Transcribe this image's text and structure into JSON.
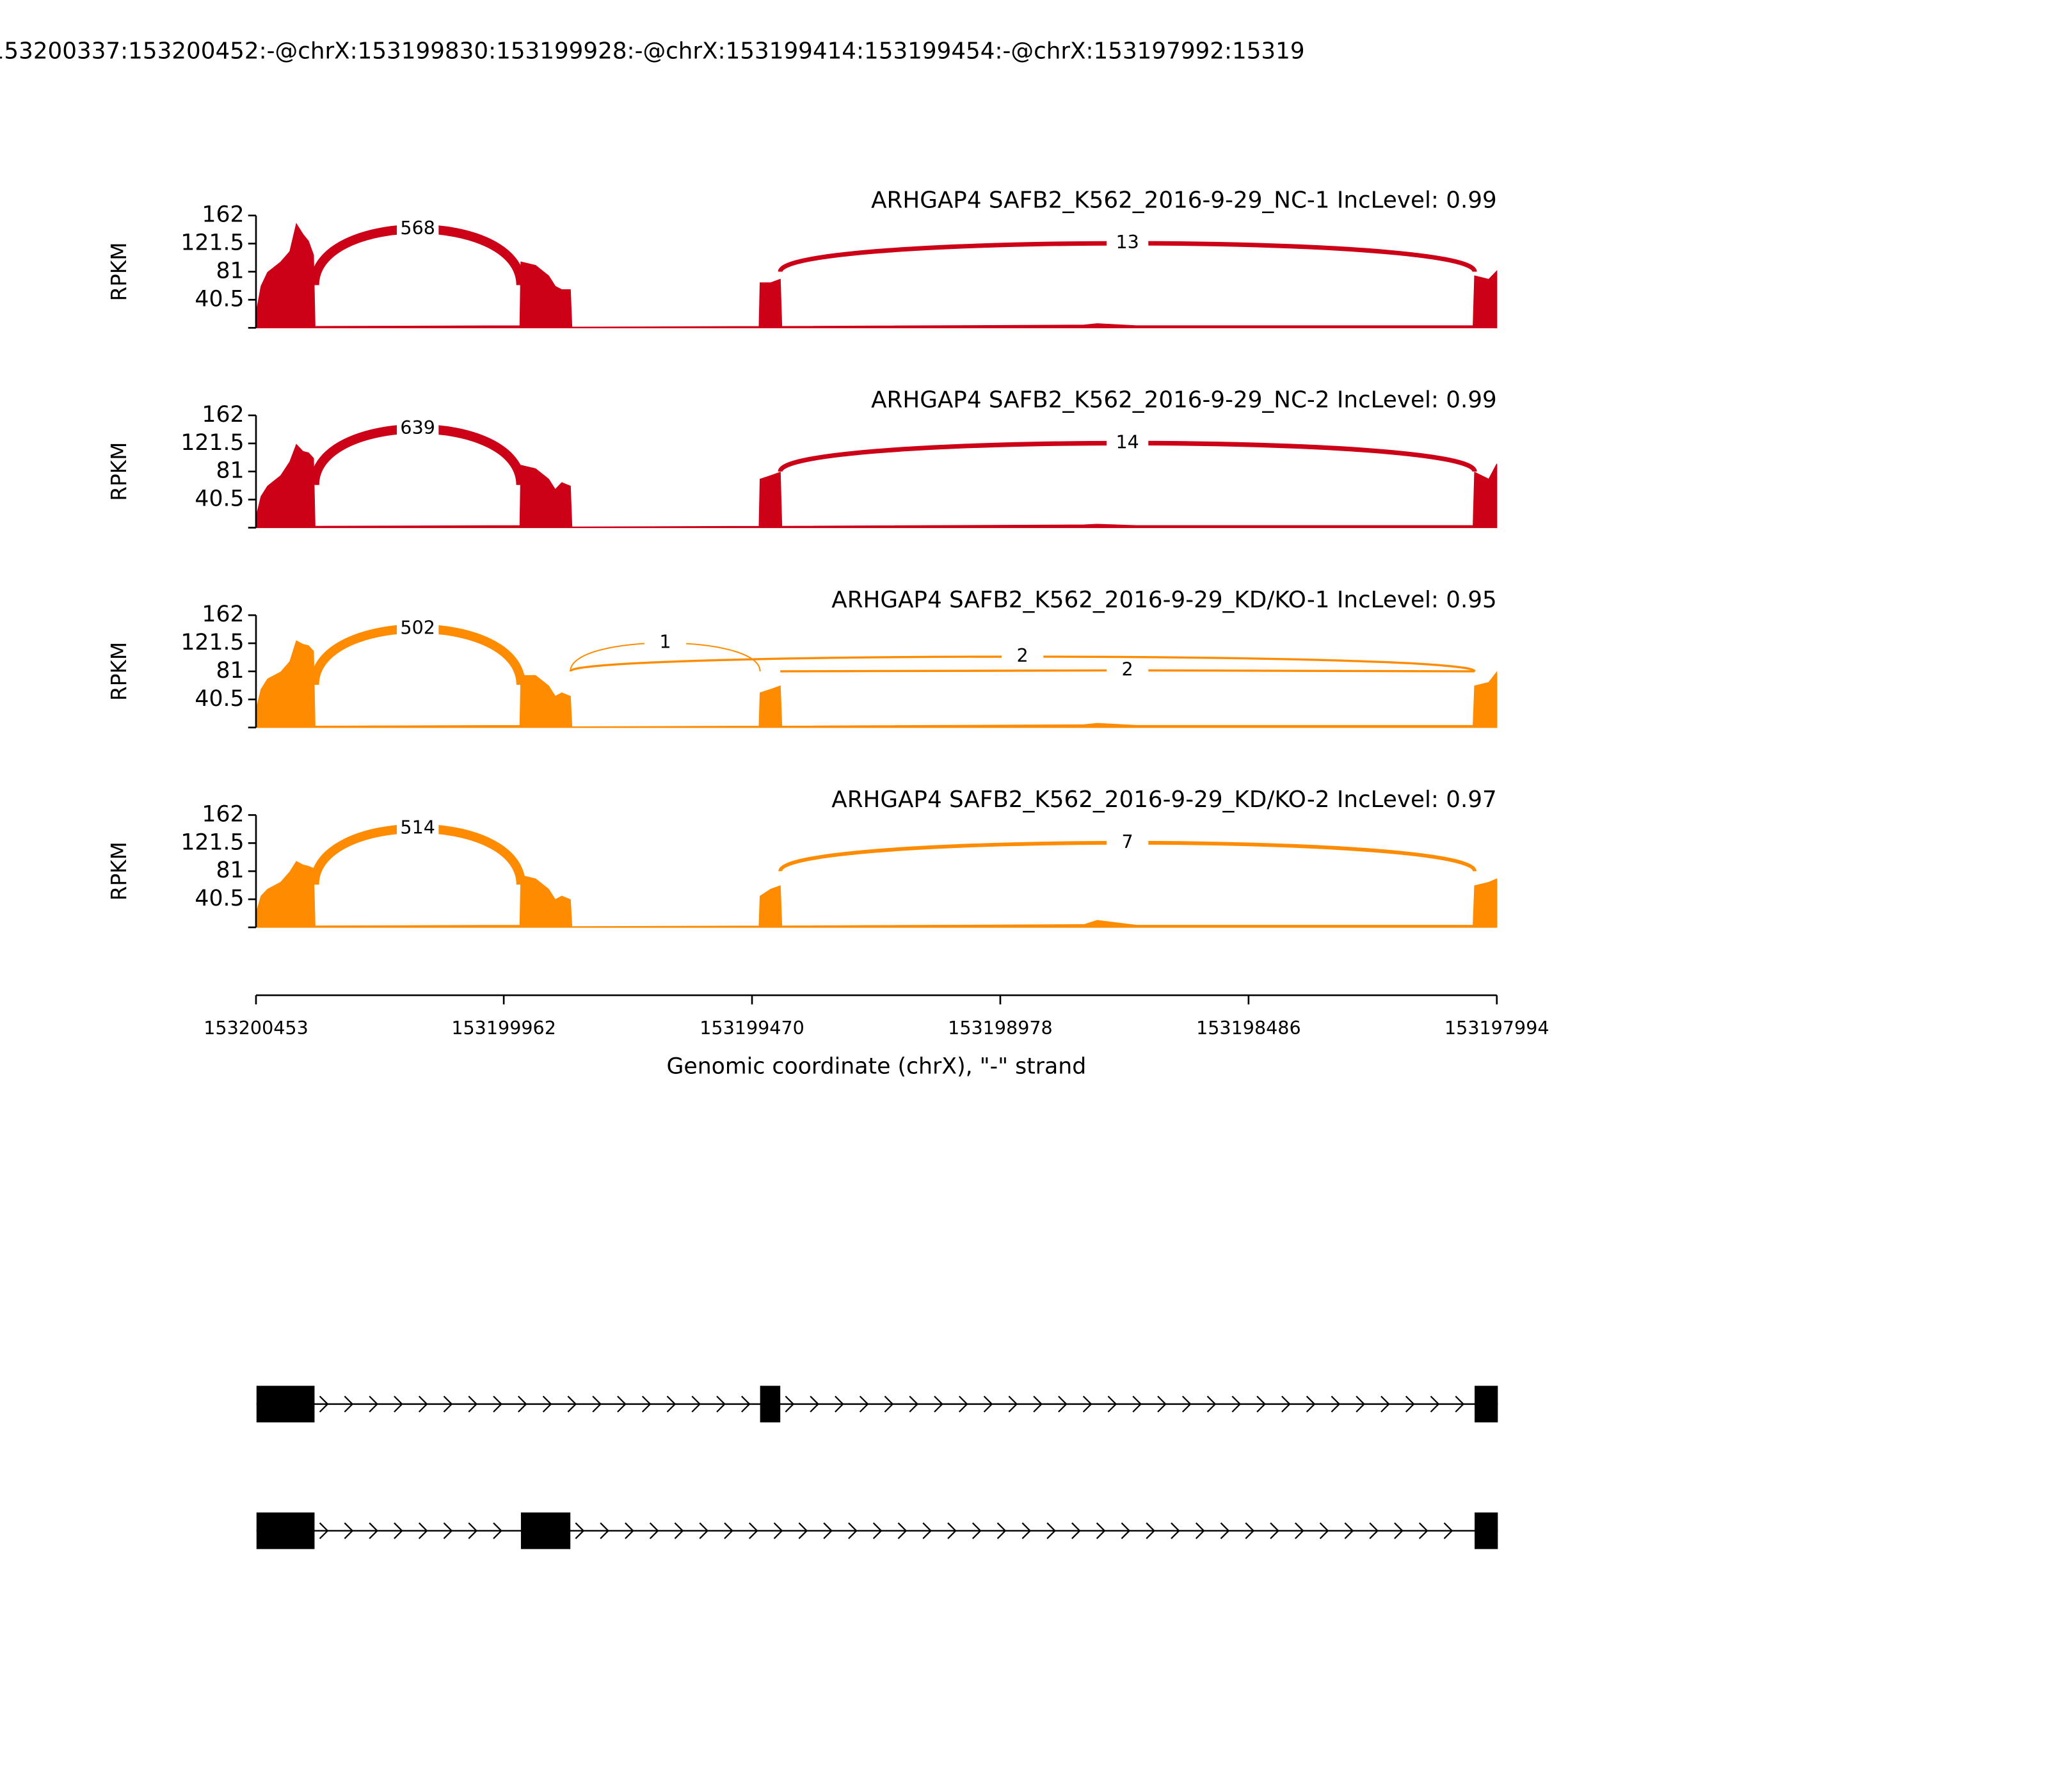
{
  "title": "153200337:153200452:-@chrX:153199830:153199928:-@chrX:153199414:153199454:-@chrX:153197992:15319",
  "chart_data": [
    {
      "type": "area",
      "title": "ARHGAP4 SAFB2_K562_2016-9-29_NC-1 IncLevel: 0.99",
      "color": "#cc0016",
      "ylabel": "RPKM",
      "ylim": [
        0,
        162
      ],
      "yticks": [
        40.5,
        81,
        121.5,
        162
      ],
      "xlim": [
        153200453,
        153197994
      ],
      "x": [
        153200453,
        153200443,
        153200430,
        153200404,
        153200386,
        153200373,
        153200360,
        153200349,
        153200339,
        153200336,
        153199930,
        153199928,
        153199899,
        153199873,
        153199860,
        153199847,
        153199830,
        153199827,
        153199456,
        153199454,
        153199433,
        153199414,
        153199411,
        153198812,
        153198786,
        153198708,
        153198041,
        153198038,
        153198010,
        153197994
      ],
      "values": [
        20,
        60,
        80,
        95,
        110,
        150,
        135,
        125,
        105,
        2,
        3,
        95,
        90,
        75,
        60,
        55,
        55,
        1,
        2,
        65,
        65,
        70,
        2,
        4,
        6,
        3,
        3,
        75,
        70,
        82
      ],
      "junctions": [
        {
          "start": 153200337,
          "end": 153199928,
          "count": 568
        },
        {
          "start": 153199414,
          "end": 153198038,
          "count": 13
        }
      ]
    },
    {
      "type": "area",
      "title": "ARHGAP4 SAFB2_K562_2016-9-29_NC-2 IncLevel: 0.99",
      "color": "#cc0016",
      "ylabel": "RPKM",
      "ylim": [
        0,
        162
      ],
      "yticks": [
        40.5,
        81,
        121.5,
        162
      ],
      "xlim": [
        153200453,
        153197994
      ],
      "x": [
        153200453,
        153200443,
        153200430,
        153200404,
        153200386,
        153200373,
        153200360,
        153200349,
        153200339,
        153200336,
        153199930,
        153199928,
        153199899,
        153199873,
        153199860,
        153199847,
        153199830,
        153199827,
        153199456,
        153199454,
        153199433,
        153199414,
        153199411,
        153198812,
        153198786,
        153198708,
        153198041,
        153198038,
        153198010,
        153197994
      ],
      "values": [
        15,
        45,
        60,
        75,
        95,
        120,
        110,
        108,
        100,
        2,
        3,
        90,
        85,
        70,
        55,
        65,
        60,
        1,
        2,
        70,
        75,
        80,
        2,
        4,
        5,
        3,
        3,
        80,
        70,
        92
      ],
      "junctions": [
        {
          "start": 153200337,
          "end": 153199928,
          "count": 639
        },
        {
          "start": 153199414,
          "end": 153198038,
          "count": 14
        }
      ]
    },
    {
      "type": "area",
      "title": "ARHGAP4 SAFB2_K562_2016-9-29_KD/KO-1 IncLevel: 0.95",
      "color": "#ff8c00",
      "ylabel": "RPKM",
      "ylim": [
        0,
        162
      ],
      "yticks": [
        40.5,
        81,
        121.5,
        162
      ],
      "xlim": [
        153200453,
        153197994
      ],
      "x": [
        153200453,
        153200443,
        153200430,
        153200404,
        153200386,
        153200373,
        153200360,
        153200349,
        153200339,
        153200336,
        153199930,
        153199928,
        153199899,
        153199873,
        153199860,
        153199847,
        153199830,
        153199827,
        153199456,
        153199454,
        153199433,
        153199414,
        153199411,
        153198812,
        153198786,
        153198708,
        153198041,
        153198038,
        153198010,
        153197994
      ],
      "values": [
        25,
        55,
        70,
        80,
        95,
        125,
        120,
        118,
        110,
        2,
        3,
        75,
        75,
        60,
        45,
        50,
        45,
        1,
        2,
        50,
        55,
        60,
        2,
        4,
        6,
        3,
        3,
        60,
        65,
        80
      ],
      "junctions": [
        {
          "start": 153200337,
          "end": 153199928,
          "count": 502
        },
        {
          "start": 153199830,
          "end": 153199454,
          "count": 1
        },
        {
          "start": 153199830,
          "end": 153198038,
          "count": 2
        },
        {
          "start": 153199414,
          "end": 153198038,
          "count": 2
        }
      ]
    },
    {
      "type": "area",
      "title": "ARHGAP4 SAFB2_K562_2016-9-29_KD/KO-2 IncLevel: 0.97",
      "color": "#ff8c00",
      "ylabel": "RPKM",
      "ylim": [
        0,
        162
      ],
      "yticks": [
        40.5,
        81,
        121.5,
        162
      ],
      "xlim": [
        153200453,
        153197994
      ],
      "xticks": [
        153200453,
        153199962,
        153199470,
        153198978,
        153198486,
        153197994
      ],
      "xlabel": "Genomic coordinate (chrX), \"-\" strand",
      "x": [
        153200453,
        153200443,
        153200430,
        153200404,
        153200386,
        153200373,
        153200360,
        153200349,
        153200339,
        153200336,
        153199930,
        153199928,
        153199899,
        153199873,
        153199860,
        153199847,
        153199830,
        153199827,
        153199456,
        153199454,
        153199433,
        153199414,
        153199411,
        153198812,
        153198786,
        153198708,
        153198041,
        153198038,
        153198010,
        153197994
      ],
      "values": [
        20,
        45,
        55,
        65,
        80,
        95,
        90,
        88,
        85,
        2,
        3,
        75,
        70,
        55,
        40,
        45,
        40,
        1,
        2,
        45,
        55,
        60,
        2,
        4,
        10,
        3,
        3,
        60,
        65,
        70
      ],
      "junctions": [
        {
          "start": 153200337,
          "end": 153199928,
          "count": 514
        },
        {
          "start": 153199414,
          "end": 153198038,
          "count": 7
        }
      ]
    }
  ],
  "transcripts": [
    {
      "exons": [
        [
          153200452,
          153200337
        ],
        [
          153199454,
          153199414
        ],
        [
          153198038,
          153197992
        ]
      ]
    },
    {
      "exons": [
        [
          153200452,
          153200337
        ],
        [
          153199928,
          153199830
        ],
        [
          153198038,
          153197992
        ]
      ]
    }
  ]
}
